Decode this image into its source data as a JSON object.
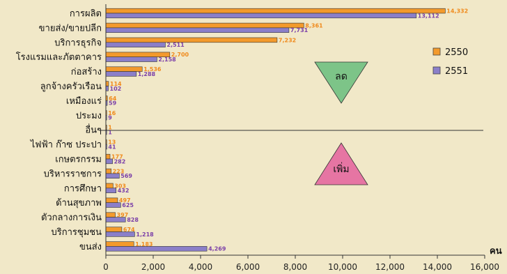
{
  "chart_data": {
    "type": "bar",
    "orientation": "horizontal",
    "categories": [
      "การผลิต",
      "ขายส่ง/ขายปลีก",
      "บริการธุรกิจ",
      "โรงแรมและภัตตาคาร",
      "ก่อสร้าง",
      "ลูกจ้างครัวเรือน",
      "เหมืองแร่",
      "ประมง",
      "อื่นๆ",
      "ไฟฟ้า ก๊าซ ประปา",
      "เกษตรกรรม",
      "บริหารราชการ",
      "การศึกษา",
      "ด้านสุขภาพ",
      "ตัวกลางการเงิน",
      "บริการชุมชน",
      "ขนส่ง"
    ],
    "series": [
      {
        "name": "2550",
        "color": "#F39A2C",
        "values": [
          14332,
          8361,
          7232,
          2700,
          1536,
          114,
          64,
          16,
          1,
          13,
          177,
          223,
          303,
          497,
          397,
          674,
          1183
        ],
        "labels": [
          "14,332",
          "8,361",
          "7,232",
          "2,700",
          "1,536",
          "114",
          "64",
          "16",
          "1",
          "13",
          "177",
          "223",
          "303",
          "497",
          "397",
          "674",
          "1,183"
        ]
      },
      {
        "name": "2551",
        "color": "#8B7FC9",
        "values": [
          13112,
          7731,
          2511,
          2158,
          1288,
          102,
          59,
          9,
          1,
          41,
          282,
          569,
          432,
          625,
          828,
          1218,
          4269
        ],
        "labels": [
          "13,112",
          "7,731",
          "2,511",
          "2,158",
          "1,288",
          "102",
          "59",
          "9",
          "1",
          "41",
          "282",
          "569",
          "432",
          "625",
          "828",
          "1,218",
          "4,269"
        ]
      }
    ],
    "xlim": [
      0,
      16000
    ],
    "xticks": [
      "0",
      "2,000",
      "4,000",
      "6,000",
      "8,000",
      "10,000",
      "12,000",
      "14,000",
      "16,000"
    ],
    "xlabel": "คน",
    "legend_position": "right",
    "annotations": {
      "decrease": "ลด",
      "increase": "เพิ่ม"
    },
    "colors": {
      "decrease_fill": "#7DC488",
      "increase_fill": "#E675A3",
      "background": "#F1E8C8"
    }
  }
}
